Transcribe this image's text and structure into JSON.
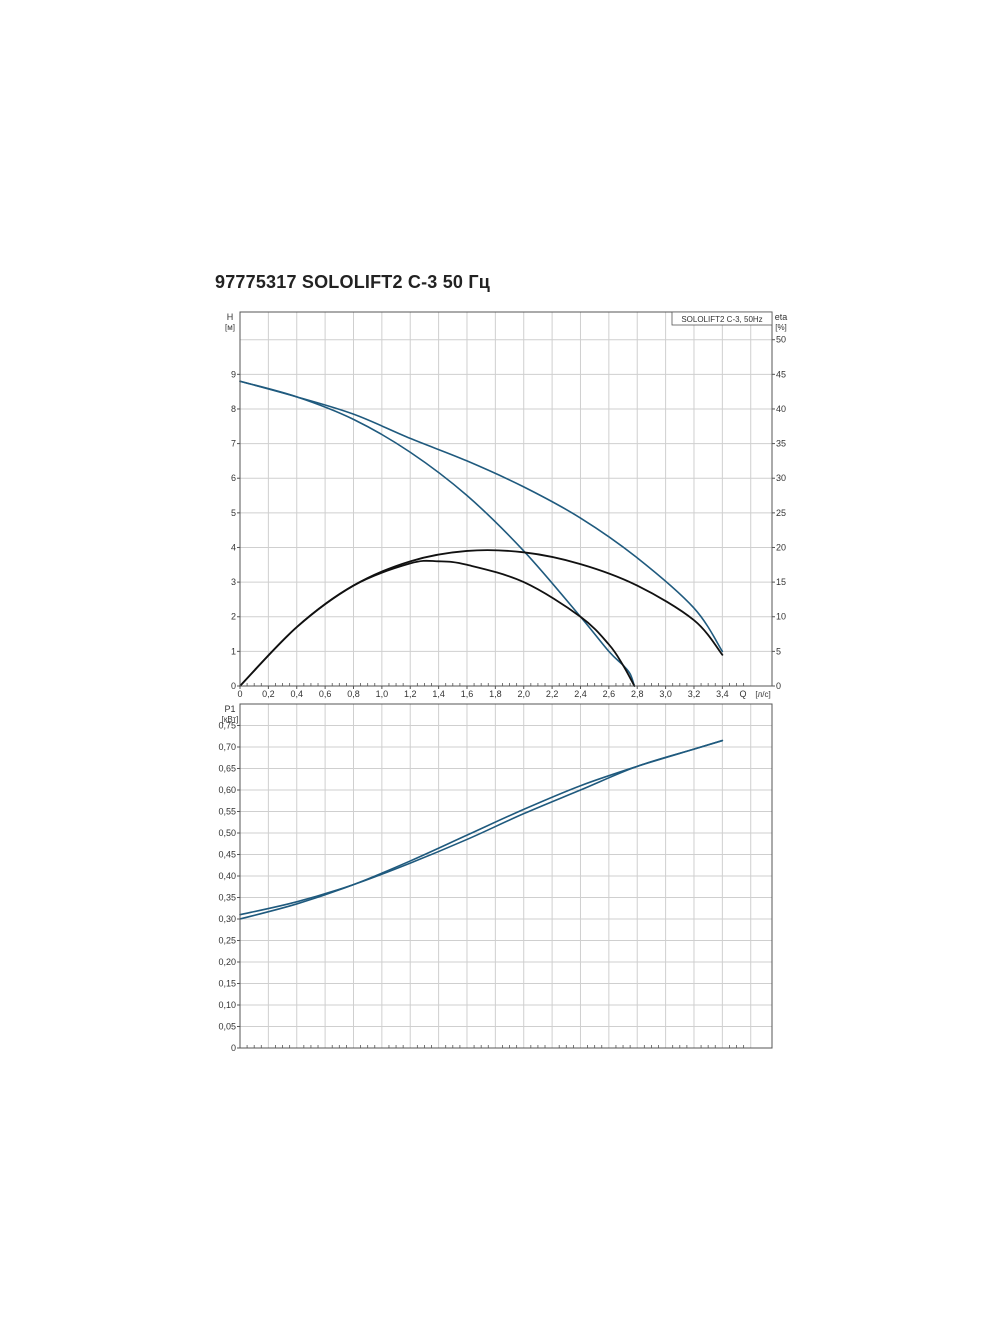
{
  "title": "97775317 SOLOLIFT2 C-3 50 Гц",
  "colors": {
    "blue": "#1f5a7e",
    "black": "#111111",
    "grid": "#cfcfcf",
    "frame": "#555555"
  },
  "chart_data": [
    {
      "type": "line",
      "name": "head-efficiency",
      "legend": "SOLOLIFT2 C-3, 50Hz",
      "legend_position": "top-right",
      "grid": true,
      "xlabel": "Q",
      "xunit": "[л/с]",
      "ylabel": "H",
      "yunit": "[м]",
      "y2label": "eta",
      "y2unit": "[%]",
      "xlim": [
        0,
        3.75
      ],
      "ylim": [
        0,
        10.8
      ],
      "y2lim": [
        0,
        54
      ],
      "x_ticks": [
        "0",
        "0,2",
        "0,4",
        "0,6",
        "0,8",
        "1,0",
        "1,2",
        "1,4",
        "1,6",
        "1,8",
        "2,0",
        "2,2",
        "2,4",
        "2,6",
        "2,8",
        "3,0",
        "3,2",
        "3,4"
      ],
      "y_ticks": [
        "0",
        "1",
        "2",
        "3",
        "4",
        "5",
        "6",
        "7",
        "8",
        "9"
      ],
      "y2_ticks": [
        "0",
        "5",
        "10",
        "15",
        "20",
        "25",
        "30",
        "35",
        "40",
        "45",
        "50"
      ],
      "series": [
        {
          "axis": "y",
          "color": "#1f5a7e",
          "x": [
            0,
            0.4,
            0.8,
            1.2,
            1.6,
            2.0,
            2.4,
            2.8,
            3.2,
            3.4
          ],
          "values": [
            8.8,
            8.35,
            7.85,
            7.15,
            6.5,
            5.75,
            4.85,
            3.7,
            2.25,
            1.0
          ]
        },
        {
          "axis": "y",
          "color": "#1f5a7e",
          "x": [
            0,
            0.4,
            0.8,
            1.2,
            1.6,
            2.0,
            2.4,
            2.6,
            2.7,
            2.75,
            2.78
          ],
          "values": [
            8.8,
            8.35,
            7.7,
            6.75,
            5.5,
            3.9,
            2.0,
            1.0,
            0.6,
            0.35,
            0
          ]
        },
        {
          "axis": "y2",
          "color": "#111111",
          "x": [
            0,
            0.4,
            0.8,
            1.2,
            1.6,
            2.0,
            2.4,
            2.8,
            3.2,
            3.4
          ],
          "values": [
            0,
            8.5,
            14.5,
            18.0,
            19.5,
            19.3,
            17.6,
            14.5,
            9.5,
            4.5
          ]
        },
        {
          "axis": "y2",
          "color": "#111111",
          "x": [
            0,
            0.4,
            0.8,
            1.2,
            1.4,
            1.6,
            2.0,
            2.4,
            2.6,
            2.7,
            2.78
          ],
          "values": [
            0,
            8.5,
            14.5,
            17.7,
            18.0,
            17.5,
            15.0,
            10.0,
            6.0,
            3.0,
            0
          ]
        }
      ]
    },
    {
      "type": "line",
      "name": "power",
      "grid": true,
      "ylabel": "P1",
      "yunit": "[кВт]",
      "xlim": [
        0,
        3.75
      ],
      "ylim": [
        0,
        0.8
      ],
      "y_ticks": [
        "0",
        "0,05",
        "0,10",
        "0,15",
        "0,20",
        "0,25",
        "0,30",
        "0,35",
        "0,40",
        "0,45",
        "0,50",
        "0,55",
        "0,60",
        "0,65",
        "0,70",
        "0,75"
      ],
      "series": [
        {
          "color": "#1f5a7e",
          "x": [
            0,
            0.4,
            0.8,
            1.2,
            1.6,
            2.0,
            2.4,
            2.8,
            3.2,
            3.4
          ],
          "values": [
            0.31,
            0.34,
            0.38,
            0.43,
            0.485,
            0.545,
            0.6,
            0.655,
            0.695,
            0.715
          ]
        },
        {
          "color": "#1f5a7e",
          "x": [
            0,
            0.4,
            0.8,
            1.2,
            1.6,
            2.0,
            2.4,
            2.8,
            3.2,
            3.4
          ],
          "values": [
            0.3,
            0.335,
            0.38,
            0.435,
            0.495,
            0.555,
            0.61,
            0.655,
            0.695,
            0.715
          ]
        }
      ]
    }
  ]
}
